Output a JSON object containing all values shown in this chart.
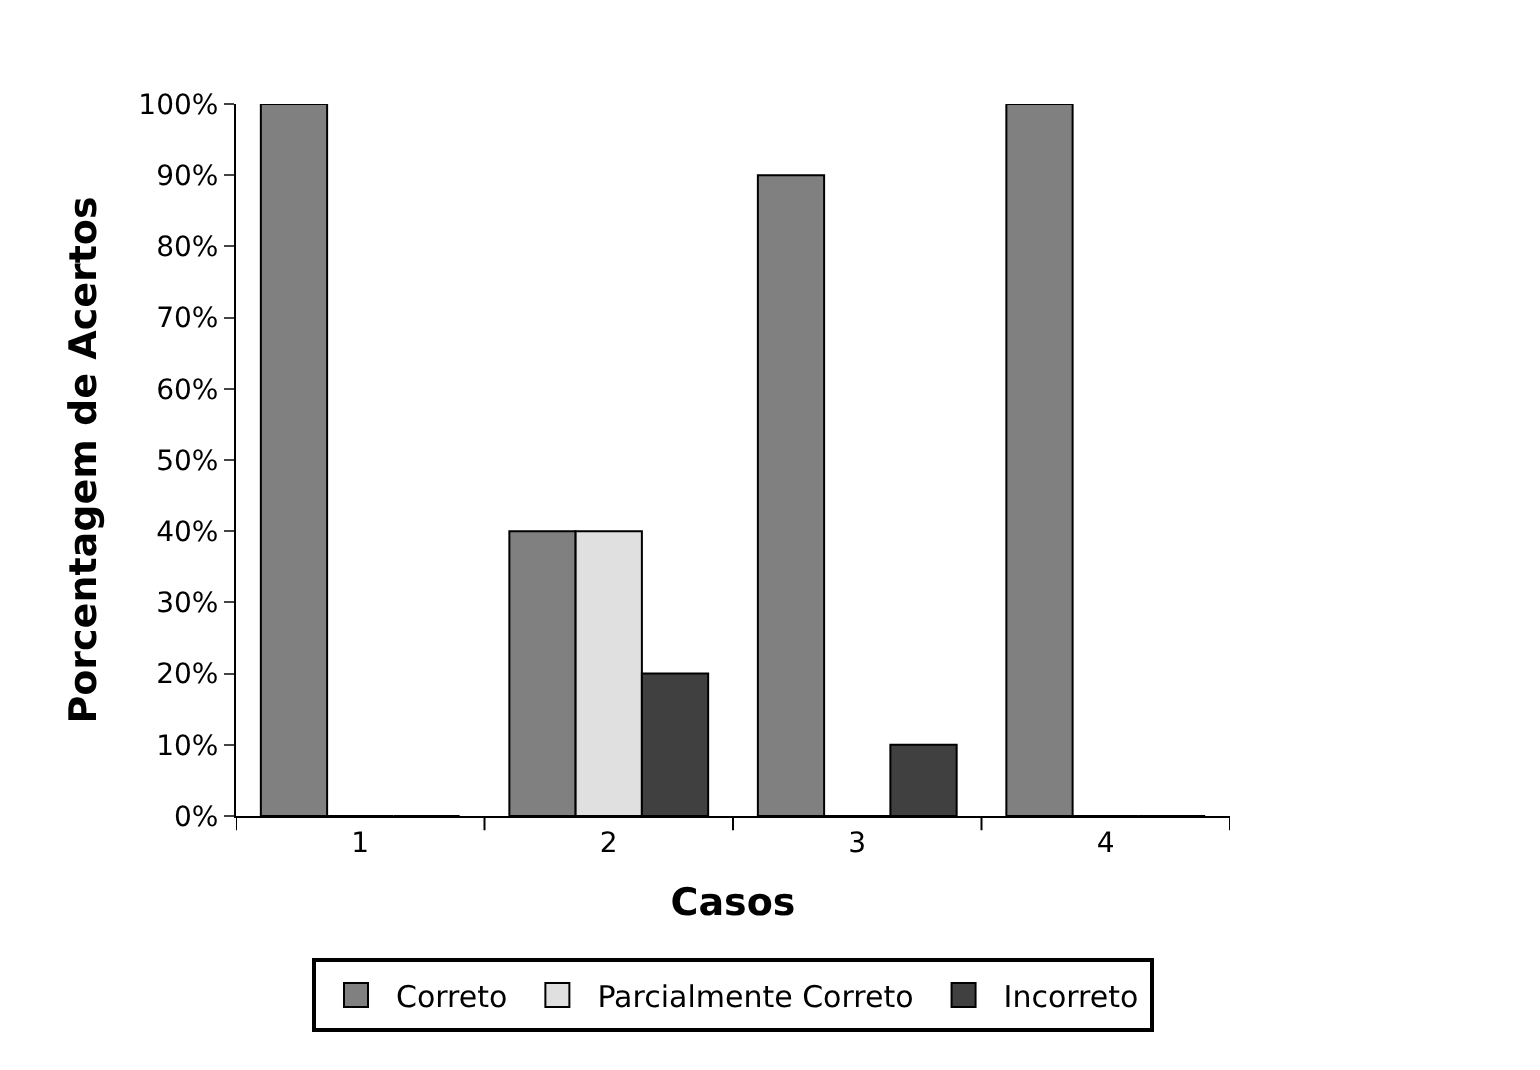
{
  "chart_data": {
    "type": "bar",
    "xlabel": "Casos",
    "ylabel": "Porcentagem de Acertos",
    "categories": [
      "1",
      "2",
      "3",
      "4"
    ],
    "series": [
      {
        "name": "Correto",
        "color": "#808080",
        "values": [
          100,
          40,
          90,
          100
        ]
      },
      {
        "name": "Parcialmente Correto",
        "color": "#e0e0e0",
        "values": [
          0,
          40,
          0,
          0
        ]
      },
      {
        "name": "Incorreto",
        "color": "#404040",
        "values": [
          0,
          20,
          10,
          0
        ]
      }
    ],
    "ylim": [
      0,
      100
    ],
    "yticks": [
      {
        "value": 0,
        "label": "0%"
      },
      {
        "value": 10,
        "label": "10%"
      },
      {
        "value": 20,
        "label": "20%"
      },
      {
        "value": 30,
        "label": "30%"
      },
      {
        "value": 40,
        "label": "40%"
      },
      {
        "value": 50,
        "label": "50%"
      },
      {
        "value": 60,
        "label": "60%"
      },
      {
        "value": 70,
        "label": "70%"
      },
      {
        "value": 80,
        "label": "80%"
      },
      {
        "value": 90,
        "label": "90%"
      },
      {
        "value": 100,
        "label": "100%"
      }
    ],
    "legend": "bottom"
  }
}
